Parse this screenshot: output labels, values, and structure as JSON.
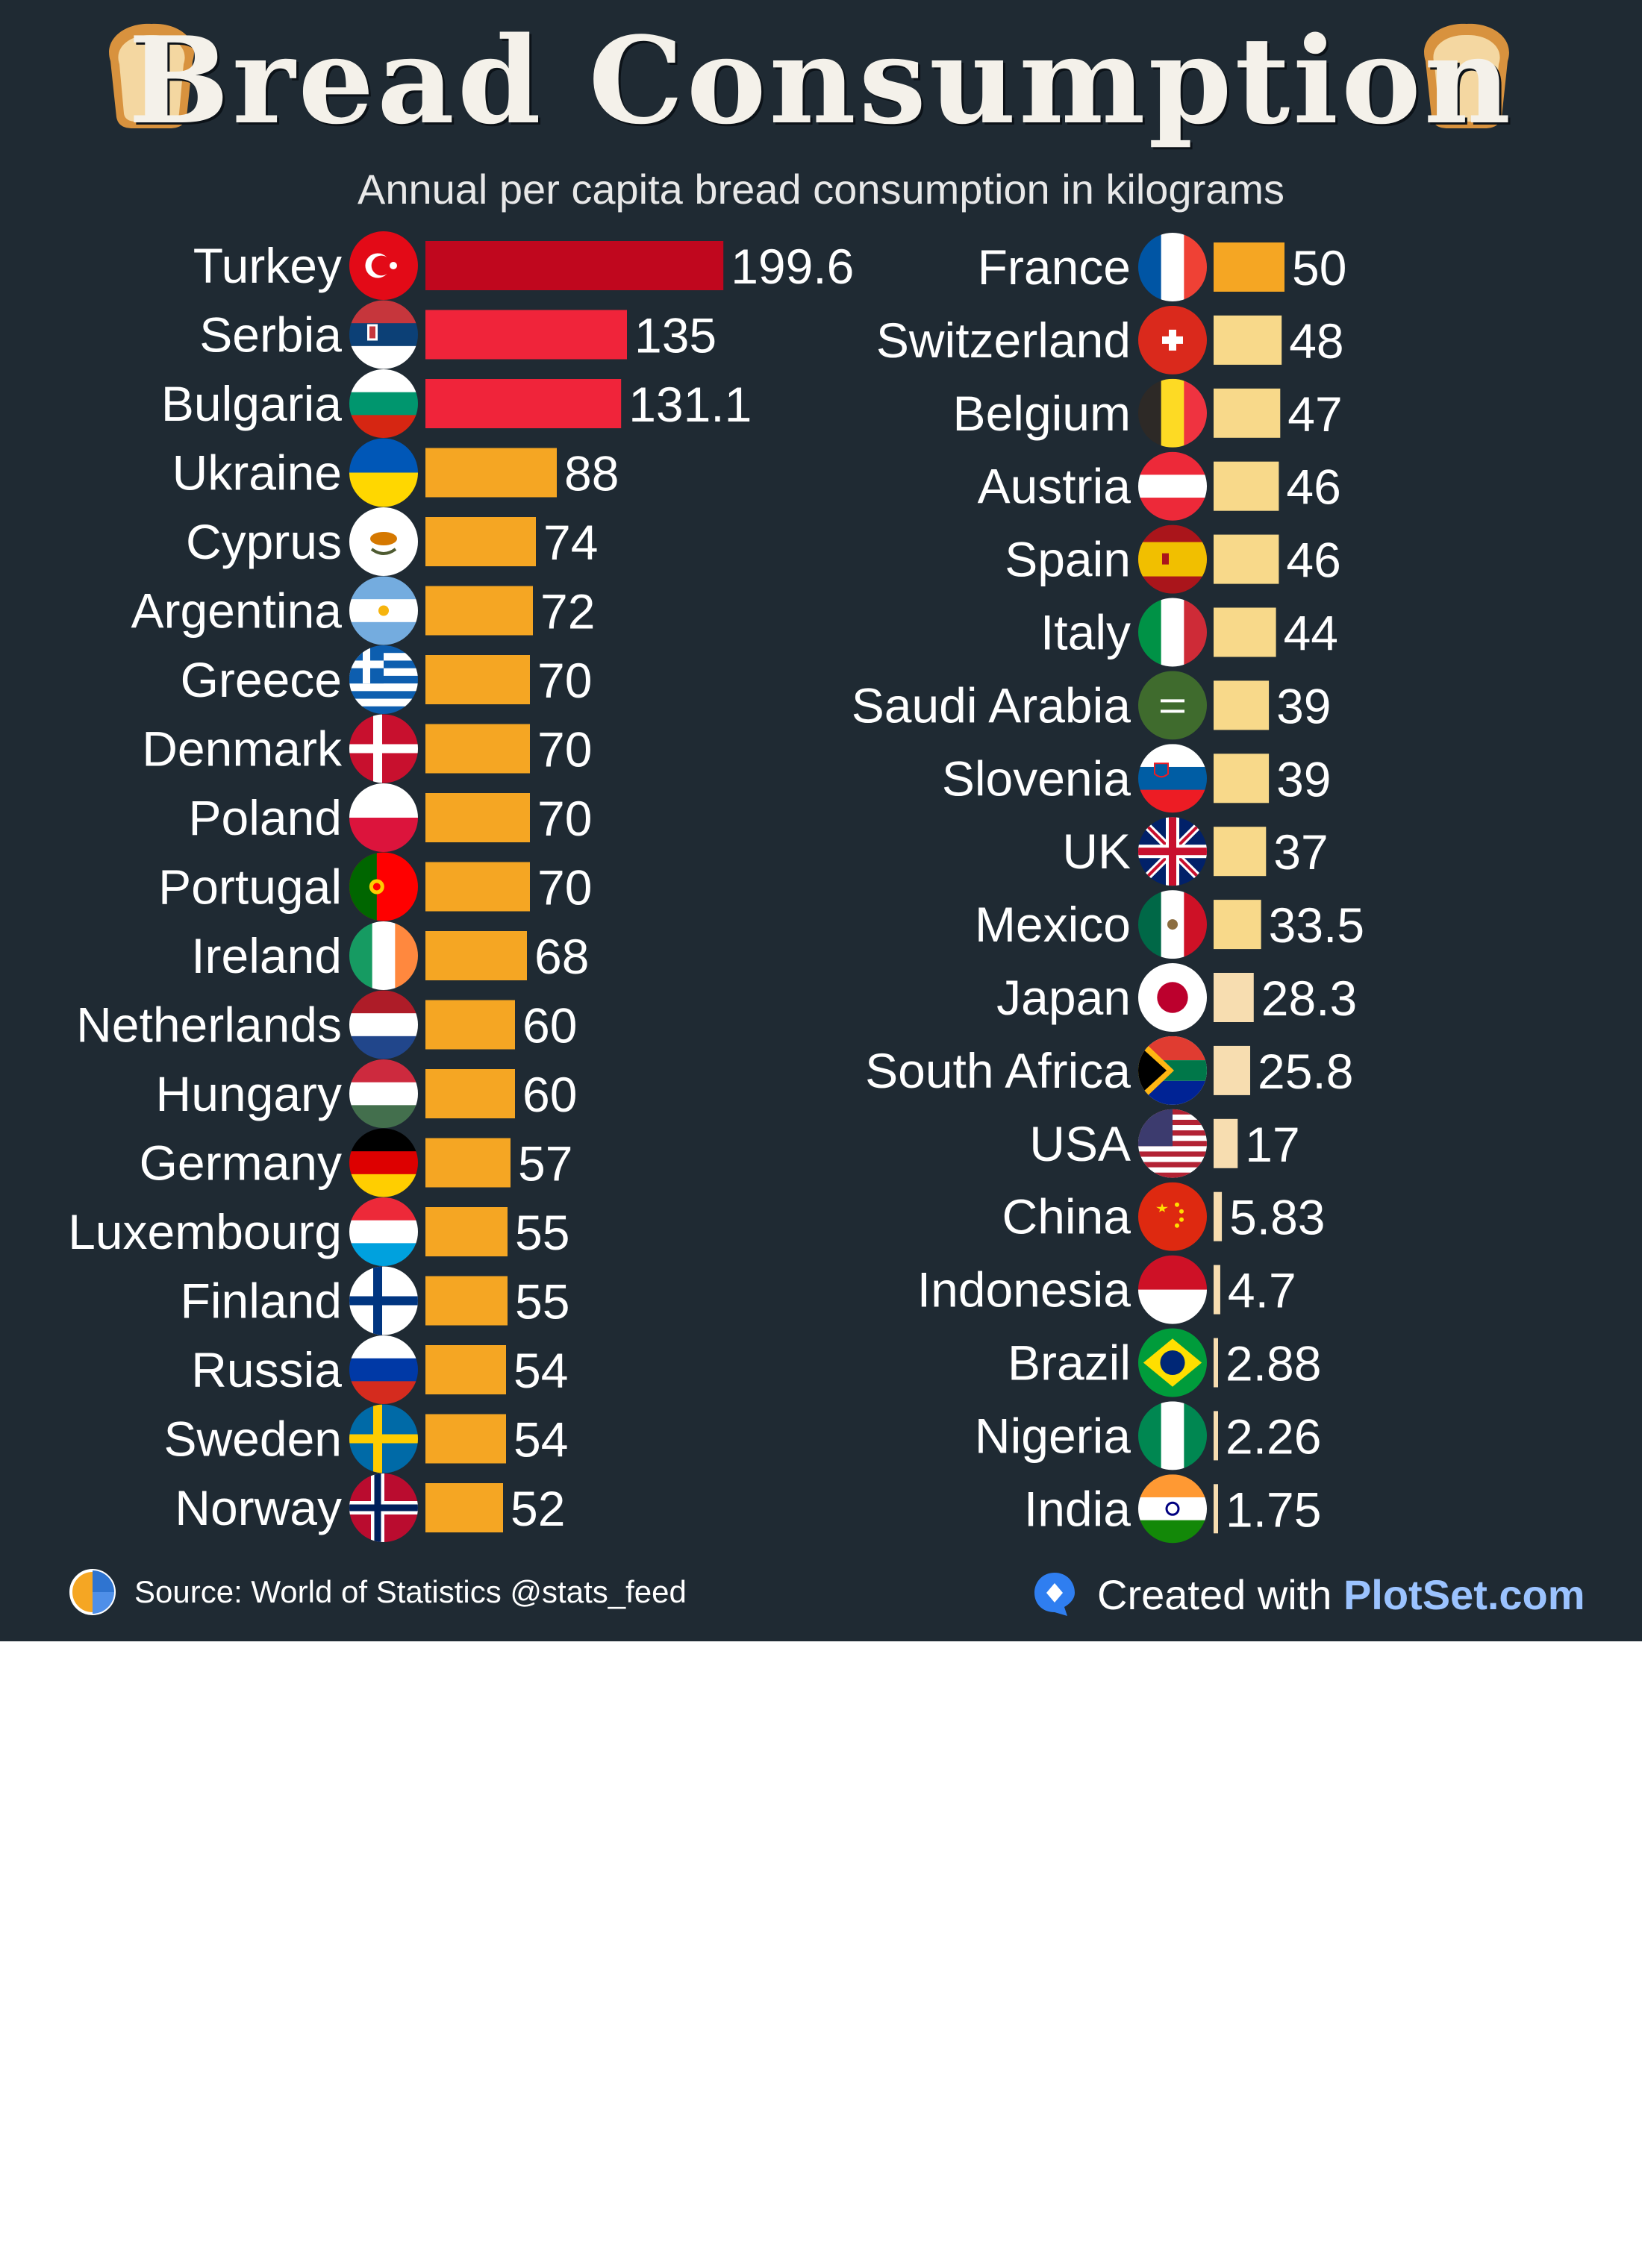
{
  "title": "Bread Consumption",
  "subtitle": "Annual per capita bread consumption in kilograms",
  "source": "Source: World of Statistics  @stats_feed",
  "credit": {
    "prefix": "Created with ",
    "brand": "PlotSet.com"
  },
  "icons": {
    "left": "bread-loaf-icon",
    "right": "bread-loaf-icon",
    "source_logo": "pie-chart-logo-icon",
    "credit_logo": "plotset-logo-icon"
  },
  "colors": {
    "background": "#1f2a33",
    "top": "#c0071e",
    "high": "#f0243a",
    "mid": "#f5a623",
    "low": "#f8d98a",
    "lowest": "#f7ddb0",
    "text": "#ffffff"
  },
  "chart_data": {
    "type": "bar",
    "orientation": "horizontal",
    "grid": false,
    "columns": [
      {
        "categories": [
          "Turkey",
          "Serbia",
          "Bulgaria",
          "Ukraine",
          "Cyprus",
          "Argentina",
          "Greece",
          "Denmark",
          "Poland",
          "Portugal",
          "Ireland",
          "Netherlands",
          "Hungary",
          "Germany",
          "Luxembourg",
          "Finland",
          "Russia",
          "Sweden",
          "Norway"
        ],
        "values": [
          199.6,
          135,
          131.1,
          88,
          74,
          72,
          70,
          70,
          70,
          70,
          68,
          60,
          60,
          57,
          55,
          55,
          54,
          54,
          52
        ],
        "labels": [
          "199.6",
          "135",
          "131.1",
          "88",
          "74",
          "72",
          "70",
          "70",
          "70",
          "70",
          "68",
          "60",
          "60",
          "57",
          "55",
          "55",
          "54",
          "54",
          "52"
        ]
      },
      {
        "categories": [
          "France",
          "Switzerland",
          "Belgium",
          "Austria",
          "Spain",
          "Italy",
          "Saudi Arabia",
          "Slovenia",
          "UK",
          "Mexico",
          "Japan",
          "South Africa",
          "USA",
          "China",
          "Indonesia",
          "Brazil",
          "Nigeria",
          "India"
        ],
        "values": [
          50,
          48,
          47,
          46,
          46,
          44,
          39,
          39,
          37,
          33.5,
          28.3,
          25.8,
          17,
          5.83,
          4.7,
          2.88,
          2.26,
          1.75
        ],
        "labels": [
          "50",
          "48",
          "47",
          "46",
          "46",
          "44",
          "39",
          "39",
          "37",
          "33.5",
          "28.3",
          "25.8",
          "17",
          "5.83",
          "4.7",
          "2.88",
          "2.26",
          "1.75"
        ]
      }
    ],
    "flags": {
      "Turkey": "turkey-flag-icon",
      "Serbia": "serbia-flag-icon",
      "Bulgaria": "bulgaria-flag-icon",
      "Ukraine": "ukraine-flag-icon",
      "Cyprus": "cyprus-flag-icon",
      "Argentina": "argentina-flag-icon",
      "Greece": "greece-flag-icon",
      "Denmark": "denmark-flag-icon",
      "Poland": "poland-flag-icon",
      "Portugal": "portugal-flag-icon",
      "Ireland": "ireland-flag-icon",
      "Netherlands": "netherlands-flag-icon",
      "Hungary": "hungary-flag-icon",
      "Germany": "germany-flag-icon",
      "Luxembourg": "luxembourg-flag-icon",
      "Finland": "finland-flag-icon",
      "Russia": "russia-flag-icon",
      "Sweden": "sweden-flag-icon",
      "Norway": "norway-flag-icon",
      "France": "france-flag-icon",
      "Switzerland": "switzerland-flag-icon",
      "Belgium": "belgium-flag-icon",
      "Austria": "austria-flag-icon",
      "Spain": "spain-flag-icon",
      "Italy": "italy-flag-icon",
      "Saudi Arabia": "saudi-arabia-flag-icon",
      "Slovenia": "slovenia-flag-icon",
      "UK": "uk-flag-icon",
      "Mexico": "mexico-flag-icon",
      "Japan": "japan-flag-icon",
      "South Africa": "south-africa-flag-icon",
      "USA": "usa-flag-icon",
      "China": "china-flag-icon",
      "Indonesia": "indonesia-flag-icon",
      "Brazil": "brazil-flag-icon",
      "Nigeria": "nigeria-flag-icon",
      "India": "india-flag-icon"
    }
  }
}
